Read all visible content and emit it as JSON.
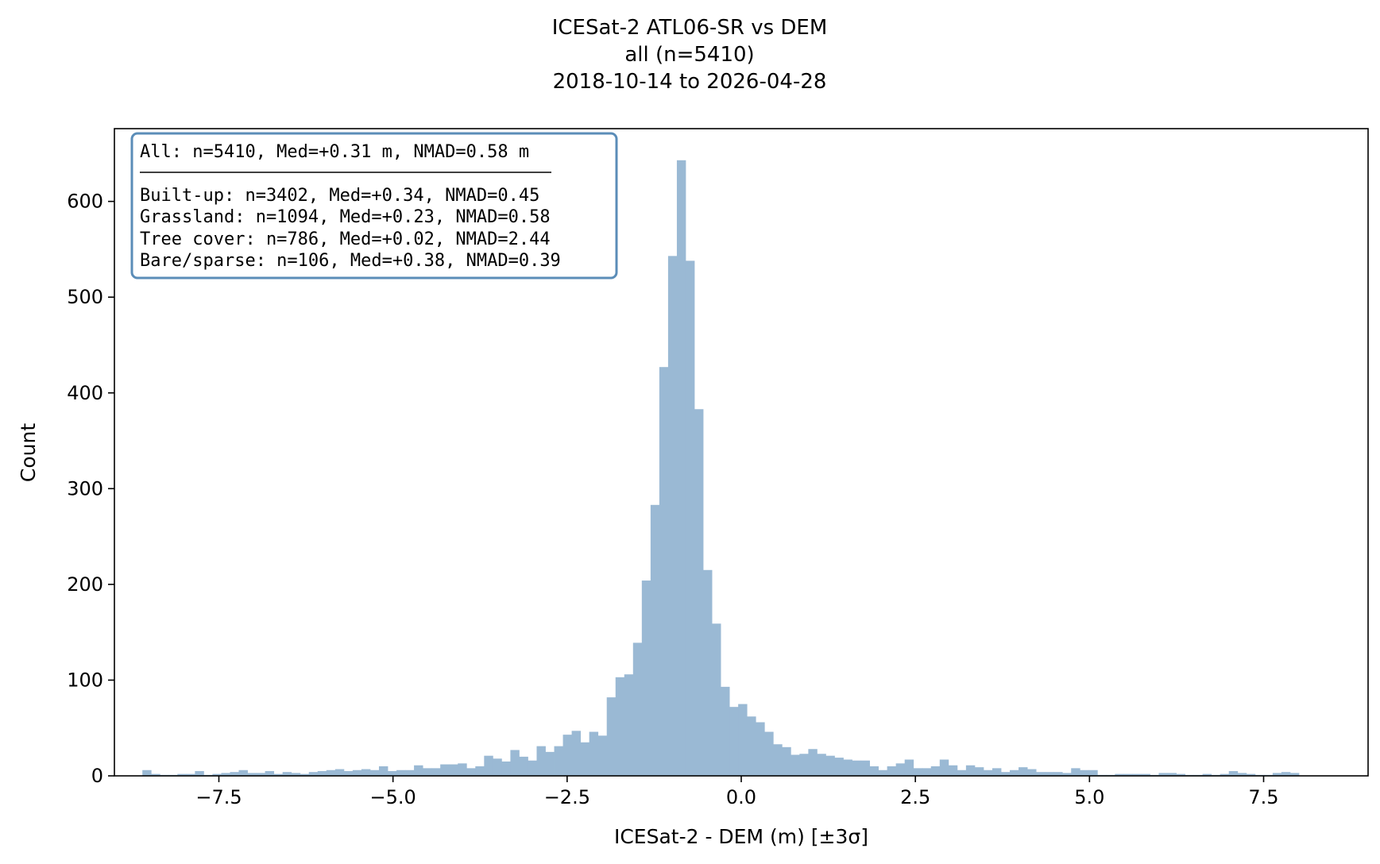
{
  "chart_data": {
    "type": "bar",
    "title_lines": [
      "ICESat-2 ATL06-SR vs DEM",
      "all (n=5410)",
      "2018-10-14 to 2026-04-28"
    ],
    "xlabel": "ICESat-2 - DEM (m) [±3σ]",
    "ylabel": "Count",
    "xlim": [
      -9.0,
      9.0
    ],
    "ylim": [
      0,
      676
    ],
    "xticks": [
      -7.5,
      -5.0,
      -2.5,
      0.0,
      2.5,
      5.0,
      7.5
    ],
    "xtick_labels": [
      "−7.5",
      "−5.0",
      "−2.5",
      "0.0",
      "2.5",
      "5.0",
      "7.5"
    ],
    "yticks": [
      0,
      100,
      200,
      300,
      400,
      500,
      600
    ],
    "ytick_labels": [
      "0",
      "100",
      "200",
      "300",
      "400",
      "500",
      "600"
    ],
    "grid": false,
    "bar_color": "#9ab9d4",
    "bin_start": -8.85,
    "bin_width": 0.1258,
    "values": [
      0,
      0,
      6,
      2,
      1,
      1,
      2,
      2,
      5,
      1,
      2,
      3,
      4,
      6,
      3,
      3,
      5,
      2,
      4,
      3,
      2,
      4,
      5,
      6,
      7,
      5,
      6,
      7,
      6,
      10,
      5,
      6,
      6,
      11,
      8,
      8,
      12,
      12,
      13,
      8,
      10,
      21,
      18,
      15,
      27,
      20,
      16,
      31,
      25,
      31,
      43,
      47,
      35,
      46,
      42,
      82,
      103,
      106,
      139,
      204,
      283,
      427,
      543,
      643,
      538,
      383,
      215,
      159,
      93,
      72,
      75,
      62,
      56,
      46,
      33,
      30,
      22,
      23,
      28,
      23,
      21,
      19,
      17,
      16,
      16,
      10,
      6,
      10,
      13,
      17,
      8,
      8,
      10,
      17,
      11,
      6,
      11,
      9,
      6,
      8,
      4,
      6,
      9,
      7,
      4,
      4,
      4,
      3,
      8,
      6,
      6,
      1,
      1,
      2,
      2,
      2,
      2,
      1,
      3,
      3,
      2,
      1,
      1,
      2,
      1,
      2,
      5,
      3,
      2,
      1,
      1,
      3,
      4,
      3
    ]
  },
  "stats_box": {
    "summary": "All: n=5410, Med=+0.31 m, NMAD=0.58 m",
    "lines": [
      "Built-up: n=3402, Med=+0.34, NMAD=0.45",
      "Grassland: n=1094, Med=+0.23, NMAD=0.58",
      "Tree cover: n=786, Med=+0.02, NMAD=2.44",
      "Bare/sparse: n=106, Med=+0.38, NMAD=0.39"
    ],
    "border_color": "#5b8db8"
  }
}
